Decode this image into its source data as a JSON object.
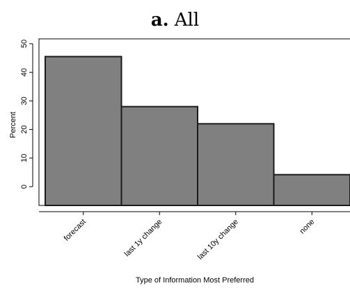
{
  "title": {
    "label": "a.",
    "text": "All"
  },
  "chart_data": {
    "type": "bar",
    "title": "a. All",
    "xlabel": "Type of Information Most Preferred",
    "ylabel": "Percent",
    "categories": [
      "forecast",
      "last 1y change",
      "last 10y change",
      "none"
    ],
    "values": [
      45.5,
      28,
      22,
      4.2
    ],
    "ylim": [
      0,
      50
    ],
    "yticks": [
      0,
      10,
      20,
      30,
      40,
      50
    ],
    "grid": false,
    "legend": "none",
    "bar_color": "#808080",
    "bar_edge_color": "#1a1a1a"
  }
}
